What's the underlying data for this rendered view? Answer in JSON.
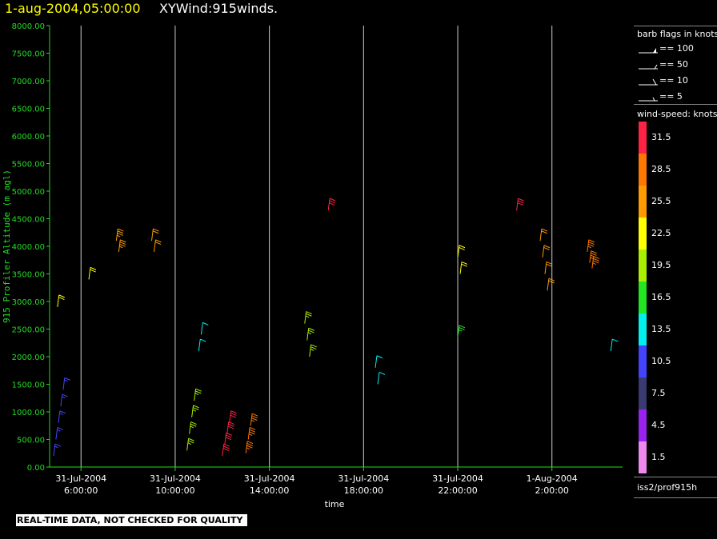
{
  "header": {
    "datetime": "1-aug-2004,05:00:00",
    "title": "XYWind:915winds."
  },
  "footer": {
    "qc_notice": "REAL-TIME DATA, NOT CHECKED FOR QUALITY",
    "source": "iss2/prof915h"
  },
  "legend": {
    "barb_title": "barb flags in knots",
    "barb_items": [
      "== 100",
      "== 50",
      "== 10",
      "== 5"
    ],
    "speed_title": "wind-speed: knots",
    "speed_bins": [
      {
        "label": "31.5",
        "color": "#ff2244"
      },
      {
        "label": "28.5",
        "color": "#ff7700"
      },
      {
        "label": "25.5",
        "color": "#ff9a00"
      },
      {
        "label": "22.5",
        "color": "#ffff00"
      },
      {
        "label": "19.5",
        "color": "#a8f000"
      },
      {
        "label": "16.5",
        "color": "#22e622"
      },
      {
        "label": "13.5",
        "color": "#00f0f0"
      },
      {
        "label": "10.5",
        "color": "#4444ff"
      },
      {
        "label": "7.5",
        "color": "#3a3a70"
      },
      {
        "label": "4.5",
        "color": "#9a22ee"
      },
      {
        "label": "1.5",
        "color": "#ee88ee"
      }
    ]
  },
  "chart_data": {
    "type": "wind-barb time-height",
    "xlabel": "time",
    "ylabel": "915 Profiler Altitude (m agl)",
    "ylim": [
      0,
      8000
    ],
    "yticks": [
      "0.00",
      "500.00",
      "1000.00",
      "1500.00",
      "2000.00",
      "2500.00",
      "3000.00",
      "3500.00",
      "4000.00",
      "4500.00",
      "5000.00",
      "5500.00",
      "6000.00",
      "6500.00",
      "7000.00",
      "7500.00",
      "8000.00"
    ],
    "xlim": [
      "31-Jul-2004 04:40",
      "1-Aug-2004 05:00"
    ],
    "xticks": [
      {
        "date": "31-Jul-2004",
        "time": "6:00:00"
      },
      {
        "date": "31-Jul-2004",
        "time": "10:00:00"
      },
      {
        "date": "31-Jul-2004",
        "time": "14:00:00"
      },
      {
        "date": "31-Jul-2004",
        "time": "18:00:00"
      },
      {
        "date": "31-Jul-2004",
        "time": "22:00:00"
      },
      {
        "date": "1-Aug-2004",
        "time": "2:00:00"
      }
    ],
    "vertical_gridlines_at_ticks": true,
    "color_scale": "wind-speed knots",
    "barb_groups_approx": [
      {
        "time": "31-Jul-2004 04:50",
        "heights_m": [
          200,
          500,
          800,
          1100,
          1400
        ],
        "speed_kt": 9
      },
      {
        "time": "31-Jul-2004 05:00",
        "heights_m": [
          2900
        ],
        "speed_kt": 22
      },
      {
        "time": "31-Jul-2004 06:20",
        "heights_m": [
          3400
        ],
        "speed_kt": 22
      },
      {
        "time": "31-Jul-2004 07:30",
        "heights_m": [
          4100,
          3900
        ],
        "speed_kt": 26
      },
      {
        "time": "31-Jul-2004 09:00",
        "heights_m": [
          4100,
          3900
        ],
        "speed_kt": 24
      },
      {
        "time": "31-Jul-2004 10:30",
        "heights_m": [
          300,
          600,
          900,
          1200
        ],
        "speed_kt": 18
      },
      {
        "time": "31-Jul-2004 11:00",
        "heights_m": [
          2100,
          2400
        ],
        "speed_kt": 13
      },
      {
        "time": "31-Jul-2004 12:00",
        "heights_m": [
          200,
          400,
          600,
          800
        ],
        "speed_kt": 31
      },
      {
        "time": "31-Jul-2004 13:00",
        "heights_m": [
          250,
          500,
          750
        ],
        "speed_kt": 27
      },
      {
        "time": "31-Jul-2004 15:30",
        "heights_m": [
          2600,
          2300,
          2000
        ],
        "speed_kt": 19
      },
      {
        "time": "31-Jul-2004 16:30",
        "heights_m": [
          4650
        ],
        "speed_kt": 31
      },
      {
        "time": "31-Jul-2004 18:30",
        "heights_m": [
          1800,
          1500
        ],
        "speed_kt": 12
      },
      {
        "time": "31-Jul-2004 22:00",
        "heights_m": [
          2350
        ],
        "speed_kt": 17
      },
      {
        "time": "31-Jul-2004 22:00",
        "heights_m": [
          3800,
          3500
        ],
        "speed_kt": 22
      },
      {
        "time": "1-Aug-2004 00:30",
        "heights_m": [
          4650
        ],
        "speed_kt": 31
      },
      {
        "time": "1-Aug-2004 01:30",
        "heights_m": [
          4100,
          3800,
          3500,
          3200
        ],
        "speed_kt": 24
      },
      {
        "time": "1-Aug-2004 03:30",
        "heights_m": [
          3900,
          3700,
          3600
        ],
        "speed_kt": 27
      },
      {
        "time": "1-Aug-2004 04:30",
        "heights_m": [
          2100
        ],
        "speed_kt": 13
      }
    ]
  }
}
